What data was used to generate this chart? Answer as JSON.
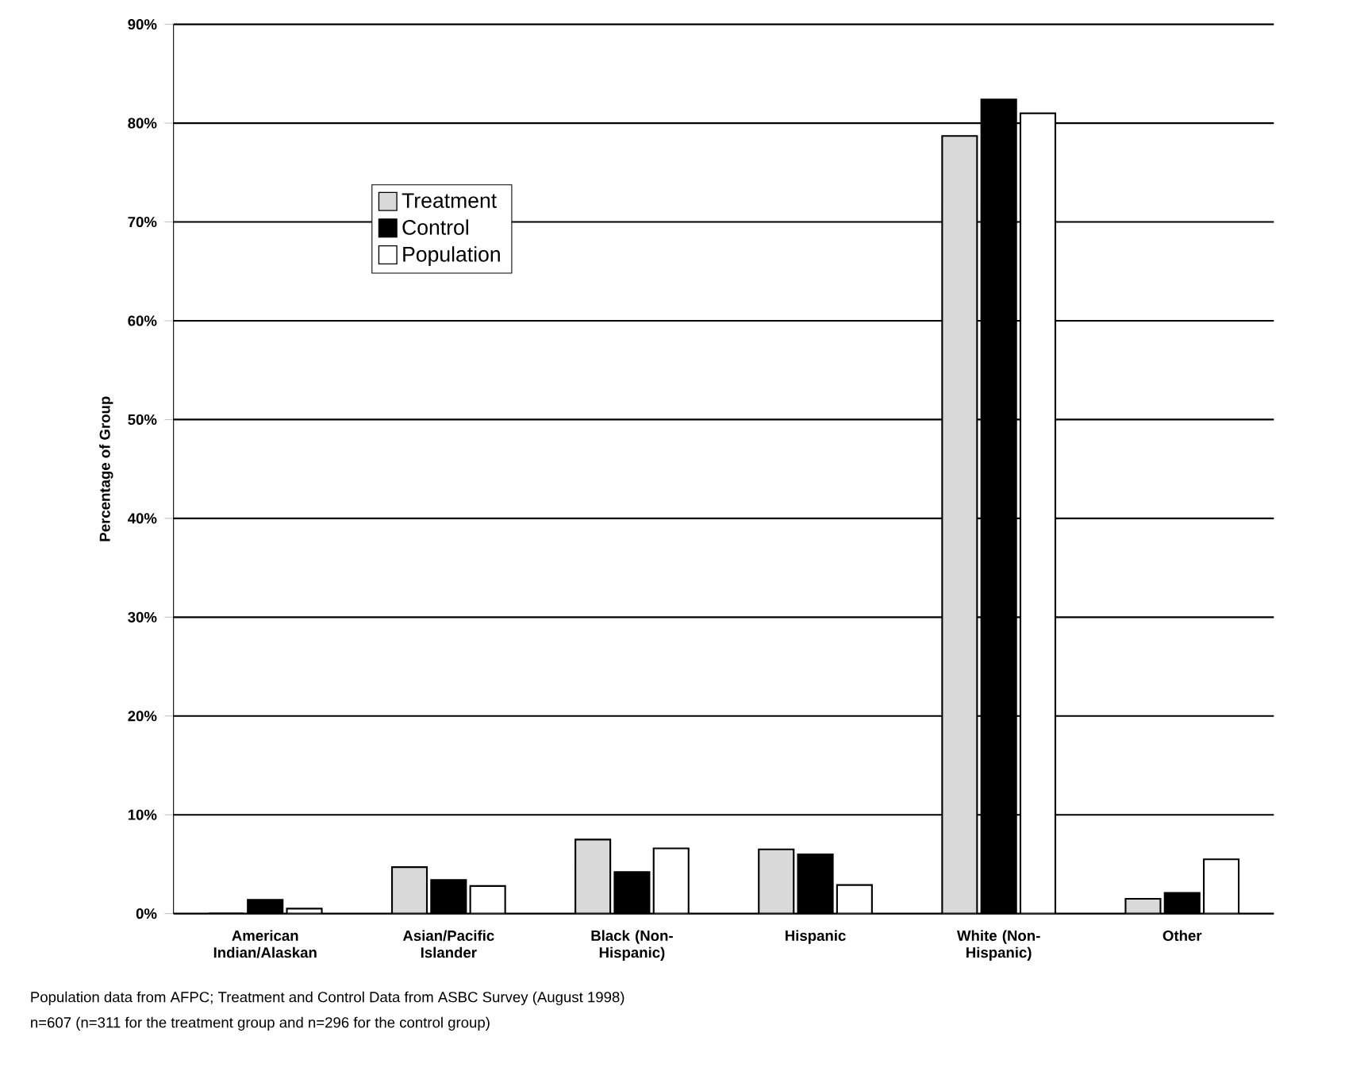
{
  "chart_data": {
    "type": "bar",
    "ylabel": "Percentage of Group",
    "categories": [
      "American Indian/Alaskan",
      "Asian/Pacific Islander",
      "Black (Non-Hispanic)",
      "Hispanic",
      "White (Non-Hispanic)",
      "Other"
    ],
    "series": [
      {
        "name": "Treatment",
        "color": "#d9d9d9",
        "values": [
          0,
          4.7,
          7.5,
          6.5,
          78.7,
          1.5
        ]
      },
      {
        "name": "Control",
        "color": "#000000",
        "values": [
          1.4,
          3.4,
          4.2,
          6.0,
          82.4,
          2.1
        ]
      },
      {
        "name": "Population",
        "color": "#ffffff",
        "values": [
          0.5,
          2.8,
          6.6,
          2.9,
          81.0,
          5.5
        ]
      }
    ],
    "ylim": [
      0,
      90
    ],
    "yticks": [
      {
        "value": 0,
        "label": "0%"
      },
      {
        "value": 10,
        "label": "10%"
      },
      {
        "value": 20,
        "label": "20%"
      },
      {
        "value": 30,
        "label": "30%"
      },
      {
        "value": 40,
        "label": "40%"
      },
      {
        "value": 50,
        "label": "50%"
      },
      {
        "value": 60,
        "label": "60%"
      },
      {
        "value": 70,
        "label": "70%"
      },
      {
        "value": 80,
        "label": "80%"
      },
      {
        "value": 90,
        "label": "90%"
      }
    ],
    "grid": "y",
    "legend": "top left",
    "annotations": [
      "Population data from AFPC; Treatment and Control Data from ASBC Survey (August 1998)",
      "n=607 (n=311 for the treatment group and n=296 for the control group)"
    ]
  }
}
